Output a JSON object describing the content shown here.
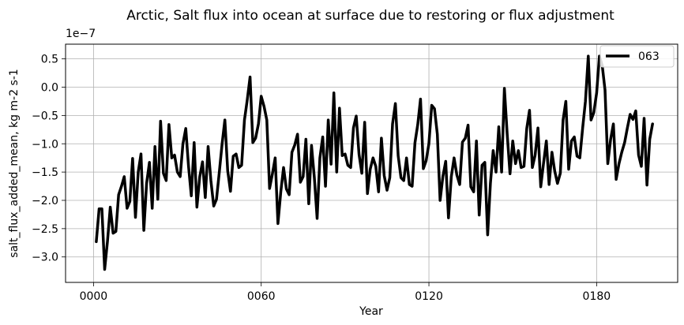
{
  "chart_data": {
    "type": "line",
    "title": "Arctic, Salt flux into ocean at surface due to restoring or flux adjustment",
    "xlabel": "Year",
    "ylabel": "salt_flux_added_mean, kg m-2 s-1",
    "y_offset_text": "1e−7",
    "y_scale_factor": 1e-07,
    "xlim": [
      -10,
      209
    ],
    "ylim": [
      -3.45,
      0.76
    ],
    "x_ticks": [
      0,
      60,
      120,
      180
    ],
    "x_tick_labels": [
      "0000",
      "0060",
      "0120",
      "0180"
    ],
    "y_ticks": [
      -3.0,
      -2.5,
      -2.0,
      -1.5,
      -1.0,
      -0.5,
      0.0,
      0.5
    ],
    "y_tick_labels": [
      "−3.0",
      "−2.5",
      "−2.0",
      "−1.5",
      "−1.0",
      "−0.5",
      "0.0",
      "0.5"
    ],
    "grid": true,
    "legend_position": "top-right",
    "series": [
      {
        "name": "063",
        "color": "#000000",
        "x": [
          1,
          2,
          3,
          4,
          5,
          6,
          7,
          8,
          9,
          10,
          11,
          12,
          13,
          14,
          15,
          16,
          17,
          18,
          19,
          20,
          21,
          22,
          23,
          24,
          25,
          26,
          27,
          28,
          29,
          30,
          31,
          32,
          33,
          34,
          35,
          36,
          37,
          38,
          39,
          40,
          41,
          42,
          43,
          44,
          45,
          46,
          47,
          48,
          49,
          50,
          51,
          52,
          53,
          54,
          55,
          56,
          57,
          58,
          59,
          60,
          61,
          62,
          63,
          64,
          65,
          66,
          67,
          68,
          69,
          70,
          71,
          72,
          73,
          74,
          75,
          76,
          77,
          78,
          79,
          80,
          81,
          82,
          83,
          84,
          85,
          86,
          87,
          88,
          89,
          90,
          91,
          92,
          93,
          94,
          95,
          96,
          97,
          98,
          99,
          100,
          101,
          102,
          103,
          104,
          105,
          106,
          107,
          108,
          109,
          110,
          111,
          112,
          113,
          114,
          115,
          116,
          117,
          118,
          119,
          120,
          121,
          122,
          123,
          124,
          125,
          126,
          127,
          128,
          129,
          130,
          131,
          132,
          133,
          134,
          135,
          136,
          137,
          138,
          139,
          140,
          141,
          142,
          143,
          144,
          145,
          146,
          147,
          148,
          149,
          150,
          151,
          152,
          153,
          154,
          155,
          156,
          157,
          158,
          159,
          160,
          161,
          162,
          163,
          164,
          165,
          166,
          167,
          168,
          169,
          170,
          171,
          172,
          173,
          174,
          175,
          176,
          177,
          178,
          179,
          180,
          181,
          182,
          183,
          184,
          185,
          186,
          187,
          188,
          189,
          190,
          191,
          192,
          193,
          194,
          195,
          196,
          197,
          198,
          199,
          200
        ],
        "y": [
          -2.73,
          -2.15,
          -2.15,
          -3.22,
          -2.72,
          -2.12,
          -2.58,
          -2.55,
          -1.9,
          -1.75,
          -1.58,
          -2.14,
          -2.02,
          -1.26,
          -2.3,
          -1.5,
          -1.18,
          -2.53,
          -1.7,
          -1.33,
          -2.14,
          -1.05,
          -1.98,
          -0.6,
          -1.52,
          -1.65,
          -0.66,
          -1.25,
          -1.2,
          -1.5,
          -1.58,
          -1.0,
          -0.73,
          -1.4,
          -1.92,
          -0.98,
          -2.12,
          -1.58,
          -1.32,
          -1.95,
          -1.05,
          -1.65,
          -2.1,
          -1.98,
          -1.51,
          -1.0,
          -0.58,
          -1.48,
          -1.84,
          -1.22,
          -1.18,
          -1.42,
          -1.38,
          -0.58,
          -0.23,
          0.18,
          -0.98,
          -0.9,
          -0.65,
          -0.16,
          -0.34,
          -0.58,
          -1.79,
          -1.53,
          -1.25,
          -2.41,
          -1.85,
          -1.42,
          -1.8,
          -1.9,
          -1.15,
          -1.02,
          -0.83,
          -1.68,
          -1.58,
          -0.92,
          -2.06,
          -1.03,
          -1.6,
          -2.32,
          -1.25,
          -0.88,
          -1.75,
          -0.58,
          -1.36,
          -0.1,
          -1.5,
          -0.37,
          -1.21,
          -1.18,
          -1.38,
          -1.42,
          -0.72,
          -0.51,
          -1.19,
          -1.52,
          -0.62,
          -1.88,
          -1.45,
          -1.25,
          -1.4,
          -1.85,
          -0.9,
          -1.56,
          -1.82,
          -1.6,
          -0.65,
          -0.29,
          -1.21,
          -1.6,
          -1.65,
          -1.25,
          -1.72,
          -1.75,
          -0.98,
          -0.66,
          -0.21,
          -1.44,
          -1.3,
          -1.0,
          -0.32,
          -0.38,
          -0.83,
          -2.0,
          -1.58,
          -1.31,
          -2.31,
          -1.58,
          -1.25,
          -1.55,
          -1.72,
          -0.97,
          -0.9,
          -0.67,
          -1.76,
          -1.85,
          -0.95,
          -2.26,
          -1.38,
          -1.33,
          -2.61,
          -1.7,
          -1.12,
          -1.5,
          -0.7,
          -1.5,
          -0.02,
          -0.82,
          -1.53,
          -0.95,
          -1.35,
          -1.12,
          -1.42,
          -1.4,
          -0.73,
          -0.41,
          -1.42,
          -1.2,
          -0.72,
          -1.76,
          -1.35,
          -0.95,
          -1.72,
          -1.15,
          -1.48,
          -1.7,
          -1.52,
          -0.58,
          -0.25,
          -1.45,
          -0.95,
          -0.88,
          -1.22,
          -1.25,
          -0.72,
          -0.25,
          0.55,
          -0.58,
          -0.45,
          -0.1,
          0.55,
          0.38,
          -0.05,
          -1.35,
          -0.92,
          -0.65,
          -1.63,
          -1.35,
          -1.15,
          -0.98,
          -0.72,
          -0.48,
          -0.57,
          -0.42,
          -1.2,
          -1.4,
          -0.55,
          -1.73,
          -0.92,
          -0.65
        ]
      }
    ]
  }
}
